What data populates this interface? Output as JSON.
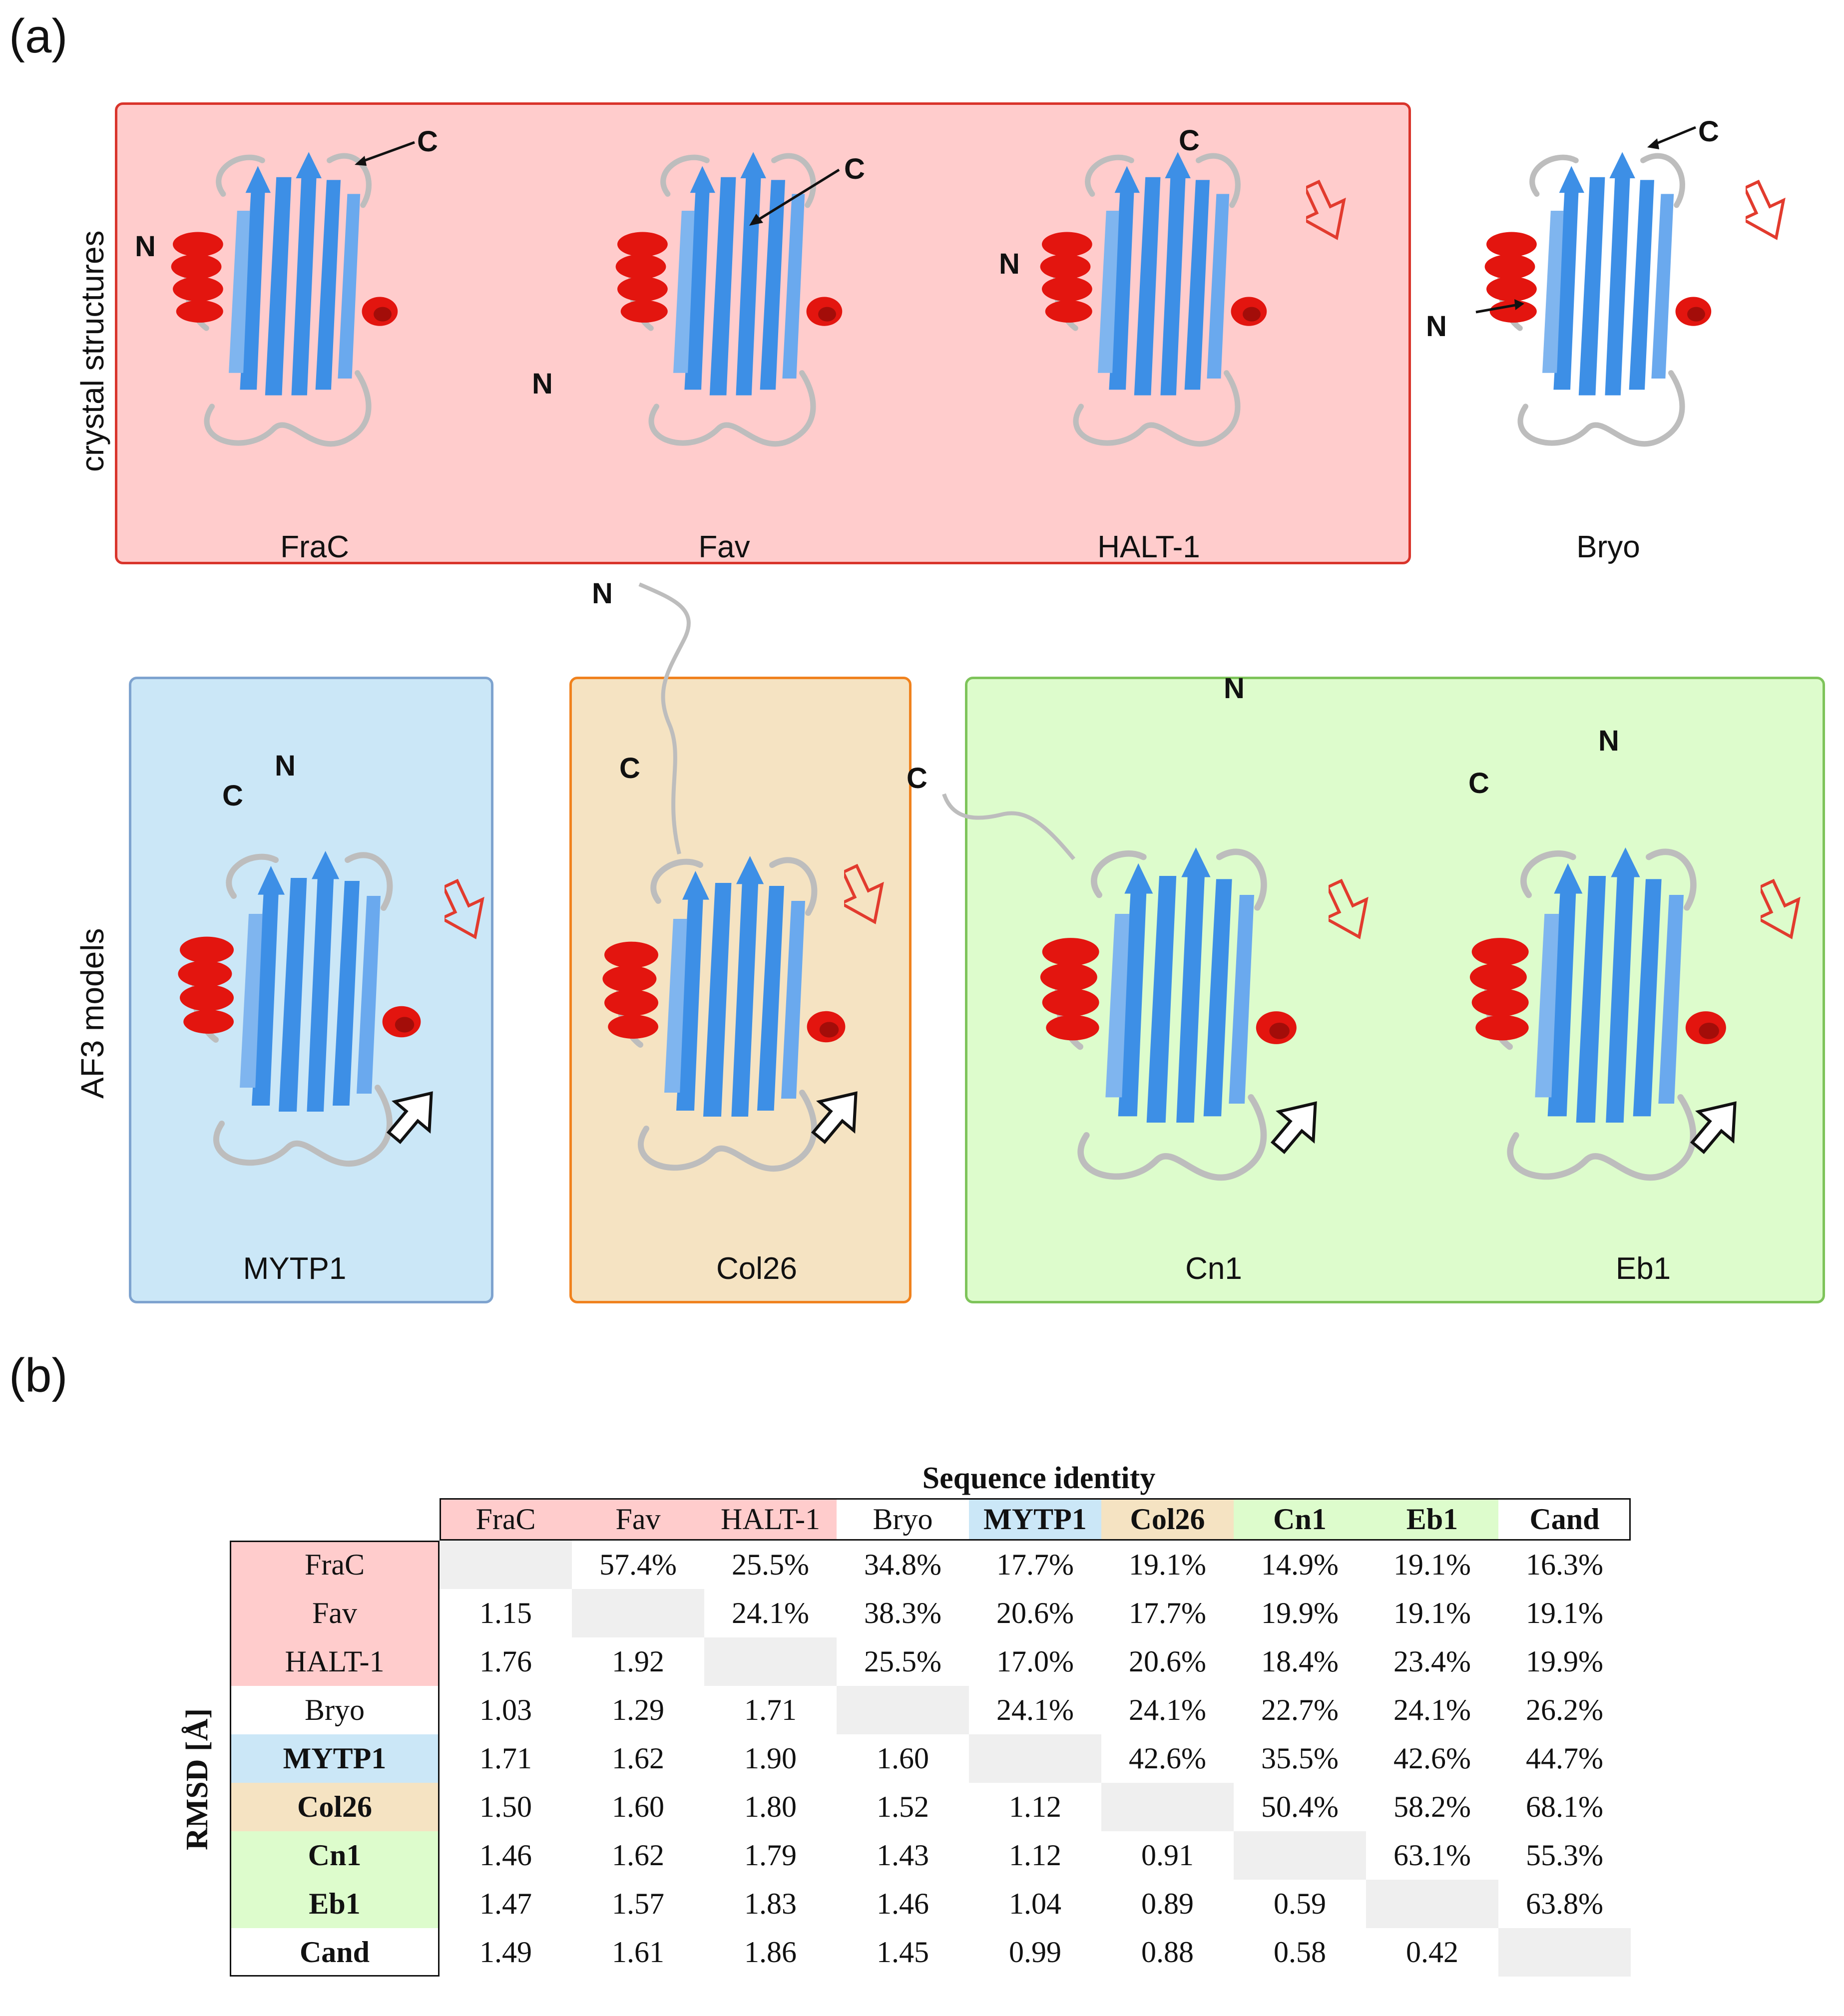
{
  "panels": {
    "a": "(a)",
    "b": "(b)"
  },
  "side_labels": {
    "crystal": "crystal structures",
    "af3": "AF3 models"
  },
  "colors": {
    "pink": "#ffcccc",
    "pink_border": "#d9342b",
    "blue": "#cbe7f7",
    "blue_border": "#7ea3cf",
    "tan": "#f5e3c2",
    "tan_border": "#f0821e",
    "green": "#ddfccc",
    "green_border": "#7ec45a",
    "helix": "#e3150f",
    "strand": "#3d8fe6",
    "loop": "#c8c8c8",
    "arrow_red": "#e23b2e"
  },
  "structures": {
    "frac": {
      "name": "FraC",
      "n": "N",
      "c": "C"
    },
    "fav": {
      "name": "Fav",
      "n": "N",
      "c": "C"
    },
    "halt1": {
      "name": "HALT-1",
      "n": "N",
      "c": "C"
    },
    "bryo": {
      "name": "Bryo",
      "n": "N",
      "c": "C"
    },
    "mytp1": {
      "name": "MYTP1",
      "n": "N",
      "c": "C"
    },
    "col26": {
      "name": "Col26",
      "n": "N",
      "c": "C"
    },
    "cn1": {
      "name": "Cn1",
      "n": "N",
      "c": "C"
    },
    "eb1": {
      "name": "Eb1",
      "n": "N",
      "c": "C"
    }
  },
  "table": {
    "title": "Sequence identity",
    "rmsd_label": "RMSD [Å]",
    "columns": [
      "FraC",
      "Fav",
      "HALT-1",
      "Bryo",
      "MYTP1",
      "Col26",
      "Cn1",
      "Eb1",
      "Cand"
    ],
    "rows": [
      {
        "label": "FraC",
        "cells": [
          "",
          "57.4%",
          "25.5%",
          "34.8%",
          "17.7%",
          "19.1%",
          "14.9%",
          "19.1%",
          "16.3%"
        ]
      },
      {
        "label": "Fav",
        "cells": [
          "1.15",
          "",
          "24.1%",
          "38.3%",
          "20.6%",
          "17.7%",
          "19.9%",
          "19.1%",
          "19.1%"
        ]
      },
      {
        "label": "HALT-1",
        "cells": [
          "1.76",
          "1.92",
          "",
          "25.5%",
          "17.0%",
          "20.6%",
          "18.4%",
          "23.4%",
          "19.9%"
        ]
      },
      {
        "label": "Bryo",
        "cells": [
          "1.03",
          "1.29",
          "1.71",
          "",
          "24.1%",
          "24.1%",
          "22.7%",
          "24.1%",
          "26.2%"
        ]
      },
      {
        "label": "MYTP1",
        "cells": [
          "1.71",
          "1.62",
          "1.90",
          "1.60",
          "",
          "42.6%",
          "35.5%",
          "42.6%",
          "44.7%"
        ]
      },
      {
        "label": "Col26",
        "cells": [
          "1.50",
          "1.60",
          "1.80",
          "1.52",
          "1.12",
          "",
          "50.4%",
          "58.2%",
          "68.1%"
        ]
      },
      {
        "label": "Cn1",
        "cells": [
          "1.46",
          "1.62",
          "1.79",
          "1.43",
          "1.12",
          "0.91",
          "",
          "63.1%",
          "55.3%"
        ]
      },
      {
        "label": "Eb1",
        "cells": [
          "1.47",
          "1.57",
          "1.83",
          "1.46",
          "1.04",
          "0.89",
          "0.59",
          "",
          "63.8%"
        ]
      },
      {
        "label": "Cand",
        "cells": [
          "1.49",
          "1.61",
          "1.86",
          "1.45",
          "0.99",
          "0.88",
          "0.58",
          "0.42",
          ""
        ]
      }
    ]
  }
}
